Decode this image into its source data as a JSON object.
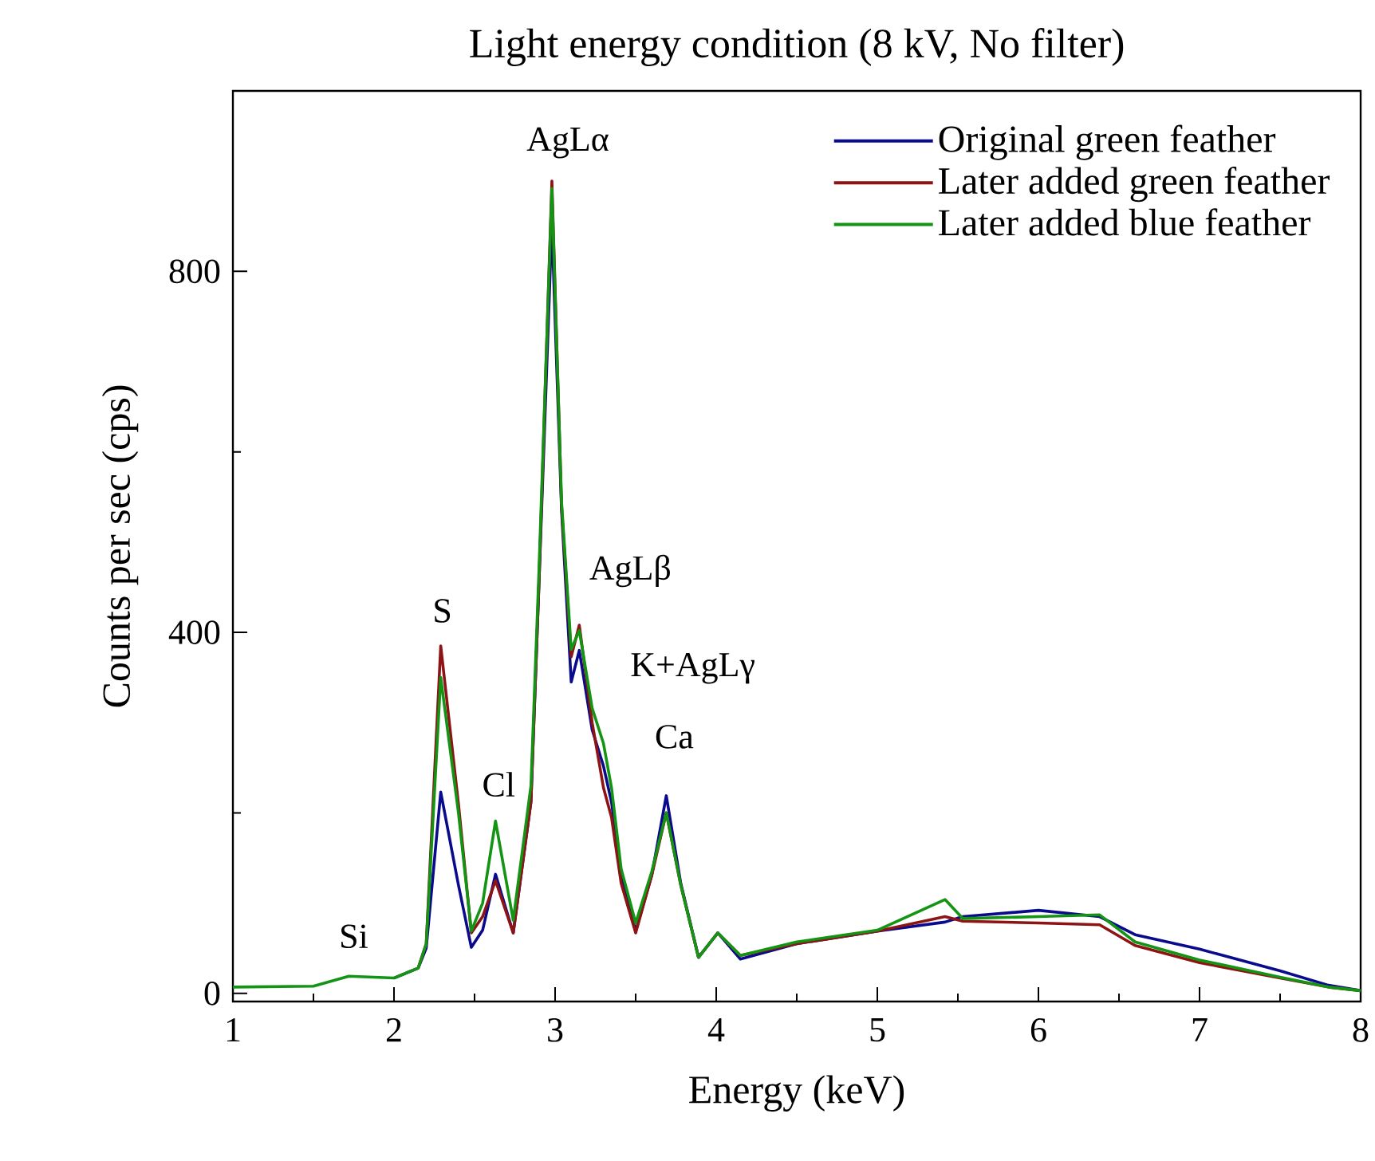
{
  "chart_data": {
    "type": "line",
    "title": "Light energy condition (8 kV, No filter)",
    "xlabel": "Energy (keV)",
    "ylabel": "Counts per sec (cps)",
    "x": [
      1.0,
      1.5,
      1.72,
      2.0,
      2.15,
      2.2,
      2.29,
      2.4,
      2.48,
      2.55,
      2.63,
      2.74,
      2.85,
      2.9,
      2.98,
      3.04,
      3.1,
      3.15,
      3.23,
      3.3,
      3.35,
      3.41,
      3.5,
      3.6,
      3.69,
      3.78,
      3.89,
      4.01,
      4.15,
      4.5,
      5.0,
      5.42,
      5.53,
      6.0,
      6.38,
      6.6,
      7.0,
      7.5,
      7.8,
      8.0
    ],
    "series": [
      {
        "name": "Original green feather",
        "color": "#0a0a8c",
        "values": [
          null,
          null,
          null,
          17,
          28,
          50,
          223,
          120,
          51,
          70,
          132,
          67,
          212,
          455,
          852,
          535,
          345,
          380,
          292,
          252,
          212,
          131,
          69,
          131,
          219,
          122,
          40,
          67,
          38,
          55,
          69,
          79,
          85,
          92,
          85,
          65,
          49,
          25,
          9,
          3
        ]
      },
      {
        "name": "Later added green feather",
        "color": "#8c1414",
        "values": [
          null,
          null,
          null,
          null,
          28,
          55,
          385,
          210,
          67,
          85,
          125,
          67,
          212,
          455,
          900,
          540,
          373,
          408,
          300,
          228,
          195,
          122,
          67,
          131,
          200,
          120,
          40,
          67,
          42,
          55,
          69,
          85,
          80,
          78,
          76,
          53,
          34,
          17,
          7,
          3
        ]
      },
      {
        "name": "Later added blue feather",
        "color": "#149414",
        "values": [
          7,
          8,
          19,
          17,
          28,
          55,
          350,
          200,
          69,
          100,
          191,
          81,
          230,
          470,
          892,
          545,
          381,
          402,
          316,
          277,
          228,
          138,
          78,
          135,
          200,
          120,
          40,
          67,
          42,
          57,
          70,
          104,
          83,
          85,
          87,
          57,
          37,
          18,
          7,
          3
        ]
      }
    ],
    "xlim": [
      1,
      8
    ],
    "ylim": [
      -9,
      1000
    ],
    "xticks": [
      1,
      {
        "value": 1.5,
        "label": null
      },
      2,
      {
        "value": 2.5,
        "label": null
      },
      3,
      {
        "value": 3.5,
        "label": null
      },
      4,
      {
        "value": 4.5,
        "label": null
      },
      5,
      {
        "value": 5.5,
        "label": null
      },
      6,
      {
        "value": 6.5,
        "label": null
      },
      7,
      {
        "value": 7.5,
        "label": null
      },
      8
    ],
    "yticks": [
      0,
      {
        "value": 200,
        "label": null
      },
      400,
      {
        "value": 600,
        "label": null
      },
      800
    ],
    "annotations": [
      {
        "text": "Si",
        "x": 1.72,
        "y": 19
      },
      {
        "text": "S",
        "x": 2.29,
        "y": 385
      },
      {
        "text": "Cl",
        "x": 2.63,
        "y": 191
      },
      {
        "text": "AgLα",
        "x": 2.98,
        "y": 900
      },
      {
        "text": "AgLβ",
        "x": 3.15,
        "y": 408
      },
      {
        "text": "K+AgLγ",
        "x": 3.3,
        "y": 277
      },
      {
        "text": "Ca",
        "x": 3.69,
        "y": 219
      }
    ],
    "legend": "top right",
    "grid": false,
    "marker": "none",
    "line_style": "solid"
  }
}
